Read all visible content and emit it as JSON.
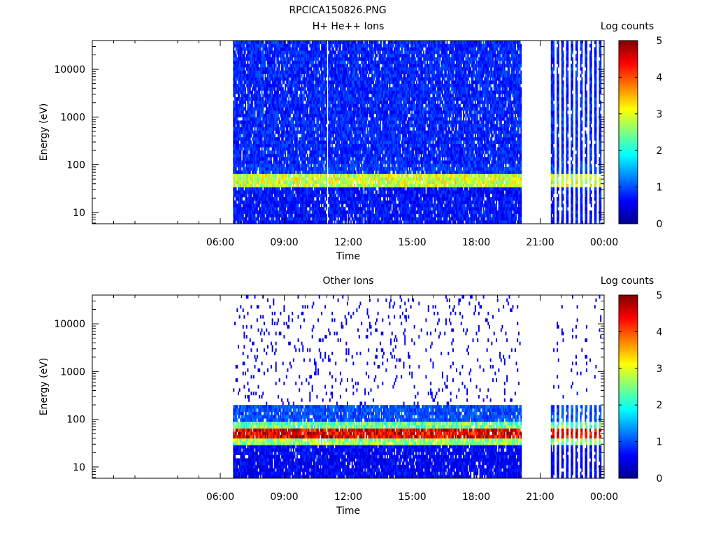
{
  "figure_title": "RPCICA150826.PNG",
  "chart_data": [
    {
      "type": "heatmap",
      "title": "H+ He++ Ions",
      "xlabel": "Time",
      "ylabel": "Energy (eV)",
      "yscale": "log",
      "ylim": [
        5.8,
        40000
      ],
      "xlim_hours": [
        0,
        24
      ],
      "xticks": [
        "06:00",
        "09:00",
        "12:00",
        "15:00",
        "18:00",
        "21:00",
        "00:00"
      ],
      "yticks": [
        "10",
        "100",
        "1000",
        "10000"
      ],
      "colorbar": {
        "label": "Log counts",
        "range": [
          0,
          5
        ],
        "ticks": [
          "0",
          "1",
          "2",
          "3",
          "4",
          "5"
        ]
      },
      "data_segments_hours": [
        [
          6.6,
          20.1
        ],
        [
          21.5,
          23.95
        ]
      ],
      "data_gap_hours": [
        10.95,
        11.0
      ],
      "bands": [
        {
          "energy_eV": [
            35,
            60
          ],
          "level": 2.9
        },
        {
          "energy_eV": [
            60,
            110
          ],
          "level": 0.9
        },
        {
          "energy_eV": [
            6,
            35
          ],
          "level": 0.7
        },
        {
          "energy_eV": [
            110,
            40000
          ],
          "level": 0.8
        }
      ]
    },
    {
      "type": "heatmap",
      "title": "Other Ions",
      "xlabel": "Time",
      "ylabel": "Energy (eV)",
      "yscale": "log",
      "ylim": [
        5.8,
        40000
      ],
      "xlim_hours": [
        0,
        24
      ],
      "xticks": [
        "06:00",
        "09:00",
        "12:00",
        "15:00",
        "18:00",
        "21:00",
        "00:00"
      ],
      "yticks": [
        "10",
        "100",
        "1000",
        "10000"
      ],
      "colorbar": {
        "label": "Log counts",
        "range": [
          0,
          5
        ],
        "ticks": [
          "0",
          "1",
          "2",
          "3",
          "4",
          "5"
        ]
      },
      "data_segments_hours": [
        [
          6.6,
          20.1
        ],
        [
          21.5,
          23.95
        ]
      ],
      "bands": [
        {
          "energy_eV": [
            40,
            60
          ],
          "level": 4.5
        },
        {
          "energy_eV": [
            28,
            40
          ],
          "level": 2.6
        },
        {
          "energy_eV": [
            60,
            90
          ],
          "level": 2.4
        },
        {
          "energy_eV": [
            90,
            200
          ],
          "level": 1.0
        },
        {
          "energy_eV": [
            6,
            28
          ],
          "level": 0.6
        },
        {
          "energy_eV": [
            200,
            40000
          ],
          "level": 0.2
        }
      ]
    }
  ]
}
